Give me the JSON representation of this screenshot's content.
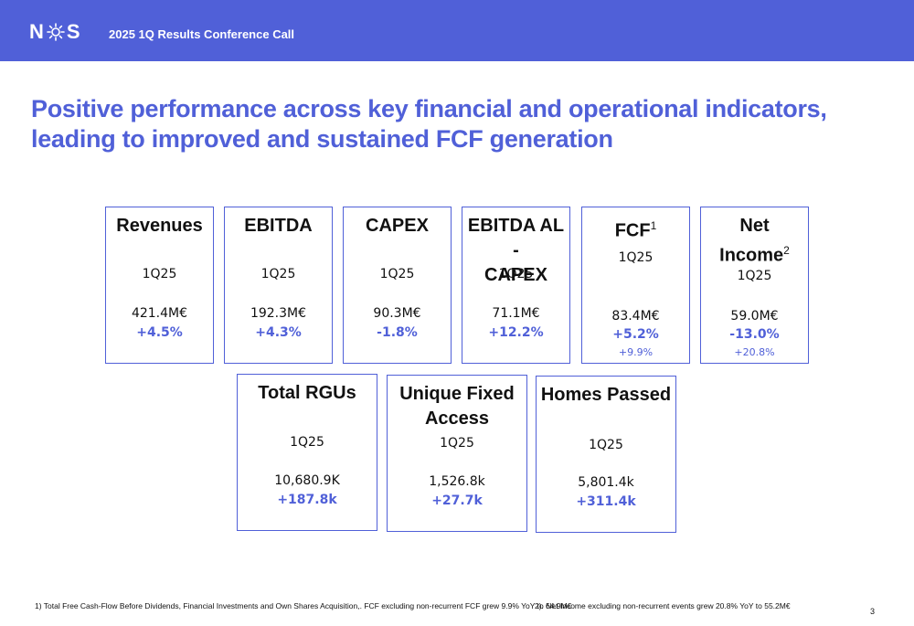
{
  "header": {
    "logo": {
      "left": "N",
      "right": "S"
    },
    "subtitle": "2025 1Q Results Conference Call",
    "brand_color": "#5060d8"
  },
  "headline": {
    "line1": "Positive performance across key financial and operational indicators,",
    "line2": "leading to improved and sustained FCF generation"
  },
  "kpis_row1": [
    {
      "title": "Revenues",
      "period": "1Q25",
      "value": "421.4M€",
      "change": "+4.5%"
    },
    {
      "title": "EBITDA",
      "period": "1Q25",
      "value": "192.3M€",
      "change": "+4.3%"
    },
    {
      "title": "CAPEX",
      "period": "1Q25",
      "value": "90.3M€",
      "change": "-1.8%"
    },
    {
      "title_line1": "EBITDA AL -",
      "title_line2": "CAPEX",
      "period": "1Q25",
      "value": "71.1M€",
      "change": "+12.2%"
    },
    {
      "title": "FCF",
      "sup": "1",
      "period": "1Q25",
      "value": "83.4M€",
      "change": "+5.2%",
      "change_alt": "+9.9%"
    },
    {
      "title_line1": "Net",
      "title_line2": "Income",
      "sup": "2",
      "period": "1Q25",
      "value": "59.0M€",
      "change": "-13.0%",
      "change_alt": "+20.8%"
    }
  ],
  "kpis_row2": [
    {
      "title": "Total RGUs",
      "period": "1Q25",
      "value": "10,680.9K",
      "change": "+187.8k"
    },
    {
      "title_line1": "Unique Fixed",
      "title_line2": "Access",
      "period": "1Q25",
      "value": "1,526.8k",
      "change": "+27.7k"
    },
    {
      "title": "Homes Passed",
      "period": "1Q25",
      "value": "5,801.4k",
      "change": "+311.4k"
    }
  ],
  "footnotes": {
    "note1": "1) Total Free Cash-Flow Before Dividends, Financial Investments and Own Shares Acquisition,. FCF excluding non-recurrent FCF grew 9.9% YoY to 64.9M€",
    "note2": "2). Net Income excluding non-recurrent events grew 20.8% YoY to 55.2M€"
  },
  "page_number": "3"
}
